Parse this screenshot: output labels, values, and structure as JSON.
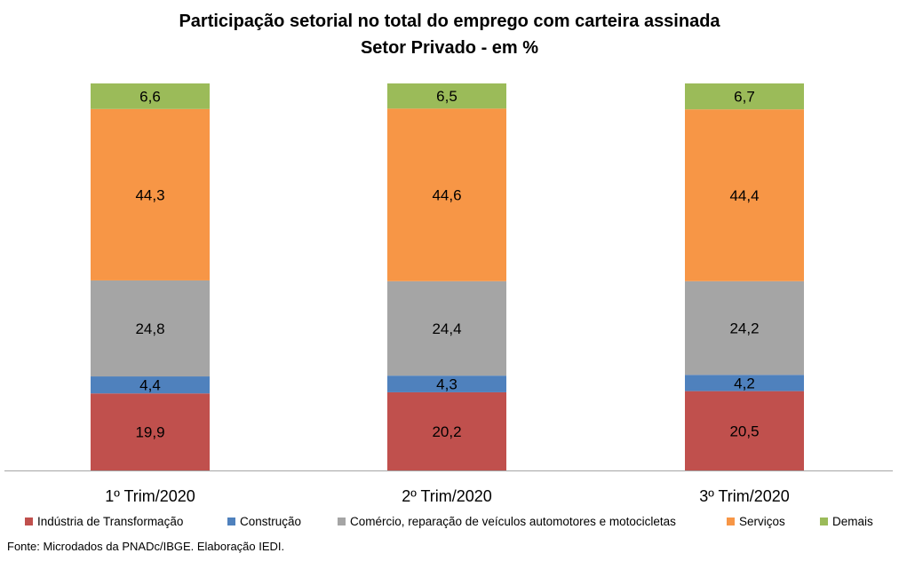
{
  "chart_data": {
    "type": "bar",
    "stacked": true,
    "title": "Participação setorial no total do emprego com carteira assinada",
    "subtitle": "Setor Privado - em  %",
    "categories": [
      "1º Trim/2020",
      "2º Trim/2020",
      "3º Trim/2020"
    ],
    "series": [
      {
        "name": "Indústria de Transformação",
        "values": [
          19.9,
          20.2,
          20.5
        ],
        "labels": [
          "19,9",
          "20,2",
          "20,5"
        ],
        "color": "#c0504d"
      },
      {
        "name": "Construção",
        "values": [
          4.4,
          4.3,
          4.2
        ],
        "labels": [
          "4,4",
          "4,3",
          "4,2"
        ],
        "color": "#4f81bd"
      },
      {
        "name": "Comércio, reparação de veículos automotores e motocicletas",
        "values": [
          24.8,
          24.4,
          24.2
        ],
        "labels": [
          "24,8",
          "24,4",
          "24,2"
        ],
        "color": "#a5a5a5"
      },
      {
        "name": "Serviços",
        "values": [
          44.3,
          44.6,
          44.4
        ],
        "labels": [
          "44,3",
          "44,6",
          "44,4"
        ],
        "color": "#f79646"
      },
      {
        "name": "Demais",
        "values": [
          6.6,
          6.5,
          6.7
        ],
        "labels": [
          "6,6",
          "6,5",
          "6,7"
        ],
        "color": "#9bbb59"
      }
    ],
    "ylim": [
      0,
      100
    ],
    "grid": false,
    "legend_position": "bottom"
  },
  "source": "Fonte: Microdados da PNADc/IBGE. Elaboração IEDI."
}
